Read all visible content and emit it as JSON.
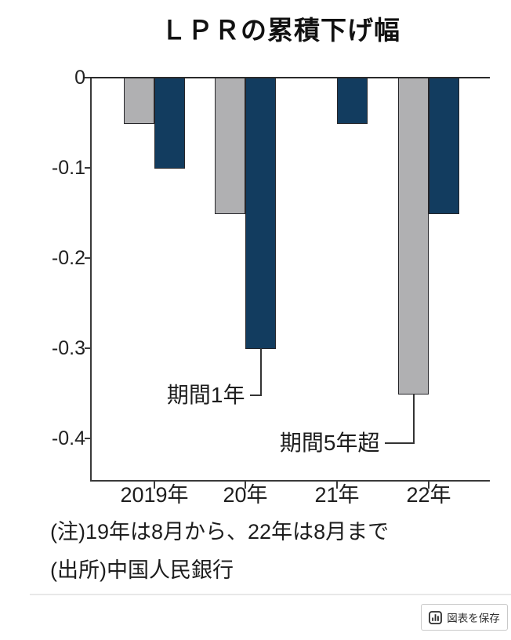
{
  "title": "ＬＰＲの累積下げ幅",
  "chart_data": {
    "type": "bar",
    "title": "ＬＰＲの累積下げ幅",
    "categories": [
      "2019年",
      "20年",
      "21年",
      "22年"
    ],
    "series": [
      {
        "name": "期間5年超",
        "color": "#b0b0b2",
        "values": [
          -0.05,
          -0.15,
          0,
          -0.35
        ]
      },
      {
        "name": "期間1年",
        "color": "#123c5f",
        "values": [
          -0.1,
          -0.3,
          -0.05,
          -0.15
        ]
      }
    ],
    "xlabel": "",
    "ylabel": "",
    "ylim": [
      -0.45,
      0
    ],
    "yticks": [
      0,
      -0.1,
      -0.2,
      -0.3,
      -0.4
    ],
    "ytick_labels": [
      "0",
      "-0.1",
      "-0.2",
      "-0.3",
      "-0.4"
    ],
    "grid": false,
    "legend_position": "none",
    "annotations": [
      {
        "label": "期間1年",
        "series": 1,
        "category": 1
      },
      {
        "label": "期間5年超",
        "series": 0,
        "category": 3
      }
    ]
  },
  "note": "(注)19年は8月から、22年は8月まで",
  "source": "(出所)中国人民銀行",
  "footer": {
    "save_button_label": "図表を保存",
    "save_button_icon": "bar-chart-icon"
  },
  "colors": {
    "bar_navy": "#123c5f",
    "bar_gray": "#b0b0b2",
    "axis": "#3a3a3a",
    "text": "#1d1d1d",
    "divider": "#e8e8e8",
    "button_border": "#c9c9c9",
    "button_text": "#333333"
  }
}
